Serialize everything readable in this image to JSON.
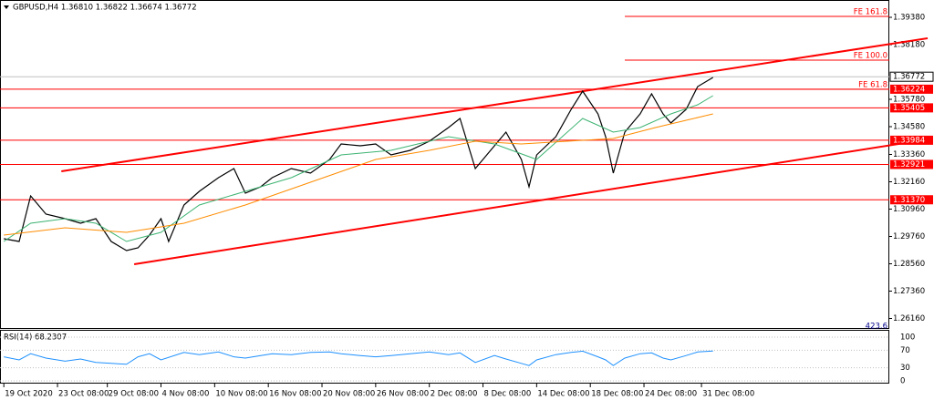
{
  "chart_data": [
    {
      "type": "line",
      "title": "GBPUSD,H4  1.36810 1.36822 1.36674 1.36772",
      "xlim": [
        0,
        232
      ],
      "ylim": [
        1.257,
        1.4014
      ],
      "xticks": [
        {
          "value": 1,
          "label": "19 Oct 2020"
        },
        {
          "value": 15,
          "label": "23 Oct 08:00"
        },
        {
          "value": 28,
          "label": "29 Oct 08:00"
        },
        {
          "value": 42,
          "label": "4 Nov 08:00"
        },
        {
          "value": 56,
          "label": "10 Nov 08:00"
        },
        {
          "value": 70,
          "label": "16 Nov 08:00"
        },
        {
          "value": 84,
          "label": "20 Nov 08:00"
        },
        {
          "value": 98,
          "label": "26 Nov 08:00"
        },
        {
          "value": 112,
          "label": "2 Dec 08:00"
        },
        {
          "value": 126,
          "label": "8 Dec 08:00"
        },
        {
          "value": 140,
          "label": "14 Dec 08:00"
        },
        {
          "value": 154,
          "label": "18 Dec 08:00"
        },
        {
          "value": 168,
          "label": "24 Dec 08:00"
        },
        {
          "value": 183,
          "label": "31 Dec 08:00"
        }
      ],
      "yticks": [
        {
          "value": 1.3938,
          "label": "1.39380"
        },
        {
          "value": 1.3818,
          "label": "1.38180"
        },
        {
          "value": 1.3578,
          "label": "1.35780"
        },
        {
          "value": 1.3458,
          "label": "1.34580"
        },
        {
          "value": 1.3336,
          "label": "1.33360"
        },
        {
          "value": 1.3216,
          "label": "1.32160"
        },
        {
          "value": 1.3096,
          "label": "1.30960"
        },
        {
          "value": 1.2976,
          "label": "1.29760"
        },
        {
          "value": 1.2856,
          "label": "1.28560"
        },
        {
          "value": 1.2736,
          "label": "1.27360"
        },
        {
          "value": 1.2616,
          "label": "1.26160"
        }
      ],
      "levels": [
        1.36224,
        1.35405,
        1.33984,
        1.32921,
        {
          "value": 1.3137,
          "label": "1.31370"
        }
      ],
      "level_color": "#ff0000",
      "current_price": 1.36772,
      "fe_levels": [
        {
          "value": 1.3942,
          "label": "FE 161.8"
        },
        {
          "value": 1.375,
          "label": "FE 100.0"
        },
        {
          "value": 1.3622,
          "label": "FE 61.8"
        }
      ],
      "annotation": "423.6",
      "channel": [
        {
          "x": [
            16,
            242
          ],
          "y": [
            1.3262,
            1.3846
          ]
        },
        {
          "x": [
            35,
            242
          ],
          "y": [
            1.2854,
            1.3402
          ]
        }
      ],
      "series": [
        {
          "color": "#000000",
          "x": [
            1,
            5,
            8,
            12,
            17,
            21,
            25,
            29,
            33,
            36,
            39,
            42,
            44,
            48,
            52,
            57,
            61,
            64,
            68,
            71,
            76,
            81,
            86,
            89,
            94,
            98,
            102,
            107,
            112,
            117,
            120,
            124,
            129,
            132,
            136,
            138,
            140,
            145,
            149,
            152,
            156,
            158,
            160,
            163,
            167,
            170,
            173,
            175,
            179,
            182,
            186
          ],
          "values": [
            1.2966,
            1.2954,
            1.3154,
            1.3074,
            1.3054,
            1.3034,
            1.3054,
            1.2954,
            1.2914,
            1.2926,
            1.2982,
            1.3054,
            1.2954,
            1.3114,
            1.3174,
            1.3234,
            1.3274,
            1.3166,
            1.3194,
            1.3234,
            1.3274,
            1.3254,
            1.3314,
            1.3382,
            1.3374,
            1.3382,
            1.3334,
            1.3354,
            1.3394,
            1.3454,
            1.3494,
            1.3274,
            1.3374,
            1.3434,
            1.3314,
            1.3194,
            1.3334,
            1.3414,
            1.3534,
            1.3614,
            1.3514,
            1.3414,
            1.3254,
            1.3434,
            1.3514,
            1.3602,
            1.3514,
            1.3474,
            1.3534,
            1.3634,
            1.3674
          ]
        },
        {
          "color": "#3cb371",
          "x": [
            1,
            8,
            17,
            25,
            33,
            42,
            52,
            64,
            76,
            89,
            102,
            117,
            129,
            140,
            152,
            160,
            167,
            175,
            182,
            186
          ],
          "values": [
            1.2954,
            1.3034,
            1.3054,
            1.3034,
            1.2954,
            1.2994,
            1.3114,
            1.3174,
            1.3234,
            1.3334,
            1.3354,
            1.3414,
            1.3382,
            1.3314,
            1.3494,
            1.3434,
            1.3454,
            1.3514,
            1.3554,
            1.3594
          ]
        },
        {
          "color": "#ff8c00",
          "x": [
            1,
            17,
            33,
            48,
            64,
            81,
            98,
            112,
            124,
            136,
            148,
            160,
            171,
            181,
            186
          ],
          "values": [
            1.2982,
            1.3014,
            1.2994,
            1.3034,
            1.3114,
            1.3214,
            1.3314,
            1.3354,
            1.3394,
            1.3382,
            1.3394,
            1.3406,
            1.3454,
            1.3494,
            1.3514
          ]
        }
      ]
    },
    {
      "type": "line",
      "title": "RSI(14) 68.2307",
      "ylim": [
        0,
        100
      ],
      "yticks": [
        100,
        70,
        30,
        0
      ],
      "series": [
        {
          "color": "#1e90ff",
          "x": [
            1,
            5,
            8,
            12,
            17,
            21,
            25,
            29,
            33,
            36,
            39,
            42,
            48,
            52,
            57,
            61,
            64,
            68,
            71,
            76,
            81,
            86,
            89,
            94,
            98,
            102,
            107,
            112,
            117,
            120,
            124,
            129,
            132,
            136,
            138,
            140,
            145,
            149,
            152,
            156,
            158,
            160,
            163,
            167,
            170,
            173,
            175,
            179,
            182,
            186
          ],
          "values": [
            55,
            48,
            62,
            52,
            45,
            50,
            42,
            40,
            38,
            55,
            62,
            48,
            65,
            60,
            66,
            55,
            52,
            58,
            62,
            60,
            65,
            66,
            62,
            58,
            55,
            58,
            62,
            66,
            60,
            64,
            42,
            58,
            50,
            40,
            35,
            48,
            60,
            65,
            68,
            55,
            48,
            35,
            52,
            62,
            64,
            52,
            48,
            58,
            66,
            68.2307
          ]
        }
      ]
    }
  ]
}
